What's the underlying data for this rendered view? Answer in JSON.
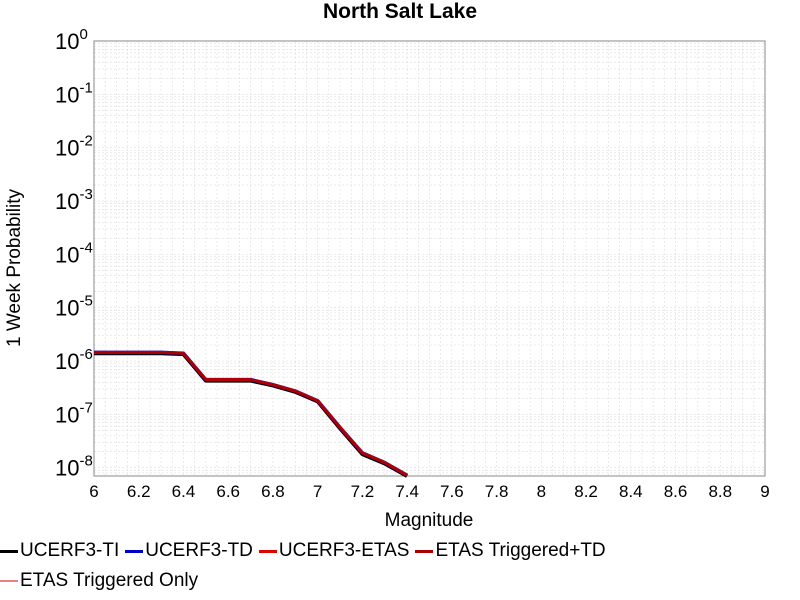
{
  "chart_data": {
    "type": "line",
    "title": "North Salt Lake",
    "xlabel": "Magnitude",
    "ylabel": "1 Week Probability",
    "xlim": [
      6,
      9
    ],
    "x_ticks": [
      "6",
      "6.2",
      "6.4",
      "6.6",
      "6.8",
      "7",
      "7.2",
      "7.4",
      "7.6",
      "7.8",
      "8",
      "8.2",
      "8.4",
      "8.6",
      "8.8",
      "9"
    ],
    "y_scale": "log",
    "ylim": [
      7e-09,
      1
    ],
    "y_tick_exponents": [
      "0",
      "-1",
      "-2",
      "-3",
      "-4",
      "-5",
      "-6",
      "-7",
      "-8"
    ],
    "y_tick_base": "10",
    "grid": true,
    "legend_placement": "bottom",
    "series": [
      {
        "name": "UCERF3-TI",
        "color": "#000000",
        "x": [
          6.0,
          6.1,
          6.2,
          6.3,
          6.4,
          6.5,
          6.6,
          6.7,
          6.8,
          6.9,
          7.0,
          7.1,
          7.2,
          7.3,
          7.4
        ],
        "y": [
          1.4e-06,
          1.4e-06,
          1.4e-06,
          1.4e-06,
          1.35e-06,
          4.3e-07,
          4.3e-07,
          4.3e-07,
          3.5e-07,
          2.65e-07,
          1.75e-07,
          5.5e-08,
          1.8e-08,
          1.2e-08,
          7e-09
        ]
      },
      {
        "name": "UCERF3-TD",
        "color": "#0000cc",
        "x": [
          6.0,
          6.1,
          6.2,
          6.3,
          6.4,
          6.5,
          6.6,
          6.7,
          6.8,
          6.9,
          7.0,
          7.1,
          7.2,
          7.3,
          7.4
        ],
        "y": [
          1.45e-06,
          1.45e-06,
          1.45e-06,
          1.45e-06,
          1.4e-06,
          4.5e-07,
          4.5e-07,
          4.5e-07,
          3.6e-07,
          2.75e-07,
          1.8e-07,
          5.7e-08,
          1.9e-08,
          1.25e-08,
          7.2e-09
        ]
      },
      {
        "name": "UCERF3-ETAS",
        "color": "#e00000",
        "x": [
          6.0,
          6.1,
          6.2,
          6.3,
          6.4,
          6.5,
          6.6,
          6.7,
          6.8,
          6.9,
          7.0,
          7.1,
          7.2,
          7.3,
          7.4
        ],
        "y": [
          1.45e-06,
          1.45e-06,
          1.45e-06,
          1.45e-06,
          1.4e-06,
          4.5e-07,
          4.5e-07,
          4.5e-07,
          3.6e-07,
          2.75e-07,
          1.8e-07,
          5.7e-08,
          1.9e-08,
          1.25e-08,
          7.2e-09
        ]
      },
      {
        "name": "ETAS Triggered+TD",
        "color": "#aa0000",
        "x": [
          6.0,
          6.1,
          6.2,
          6.3,
          6.4,
          6.5,
          6.6,
          6.7,
          6.8,
          6.9,
          7.0,
          7.1,
          7.2,
          7.3,
          7.4
        ],
        "y": [
          1.45e-06,
          1.45e-06,
          1.45e-06,
          1.45e-06,
          1.4e-06,
          4.5e-07,
          4.5e-07,
          4.5e-07,
          3.6e-07,
          2.75e-07,
          1.8e-07,
          5.7e-08,
          1.9e-08,
          1.25e-08,
          7.2e-09
        ]
      },
      {
        "name": "ETAS Triggered Only",
        "color": "#f08080",
        "x": [],
        "y": []
      }
    ]
  }
}
